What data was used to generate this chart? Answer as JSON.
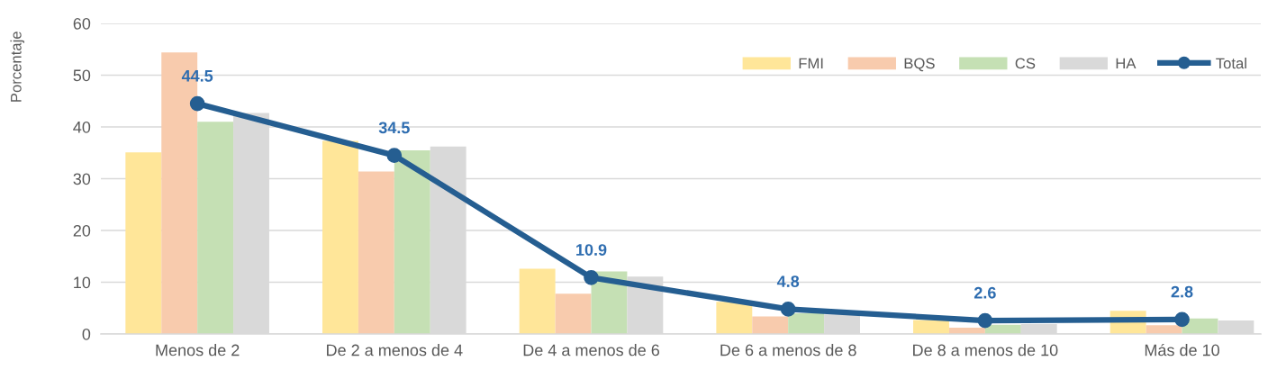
{
  "chart_data": {
    "type": "bar",
    "ylabel": "Porcentaje",
    "categories": [
      "Menos de 2",
      "De 2 a menos de 4",
      "De 4 a menos de 6",
      "De 6 a menos de 8",
      "De 8 a menos de 10",
      "Más de 10"
    ],
    "series": [
      {
        "name": "FMI",
        "color": "#ffe699",
        "values": [
          35.1,
          37.3,
          12.6,
          6.2,
          2.7,
          4.5
        ]
      },
      {
        "name": "BQS",
        "color": "#f8cbad",
        "values": [
          54.4,
          31.4,
          7.8,
          3.4,
          1.2,
          1.7
        ]
      },
      {
        "name": "CS",
        "color": "#c5e0b4",
        "values": [
          41.0,
          35.5,
          12.1,
          4.0,
          1.8,
          3.0
        ]
      },
      {
        "name": "HA",
        "color": "#d9d9d9",
        "values": [
          42.7,
          36.2,
          11.1,
          3.8,
          1.9,
          2.6
        ]
      },
      {
        "name": "Total",
        "type": "line",
        "color": "#255e91",
        "marker": "circle",
        "values": [
          44.5,
          34.5,
          10.9,
          4.8,
          2.6,
          2.8
        ],
        "value_labels": [
          "44.5",
          "34.5",
          "10.9",
          "4.8",
          "2.6",
          "2.8"
        ]
      }
    ],
    "ylim": [
      0,
      60
    ],
    "yticks": [
      0,
      10,
      20,
      30,
      40,
      50,
      60
    ],
    "grid": "y",
    "legend": "top right"
  }
}
